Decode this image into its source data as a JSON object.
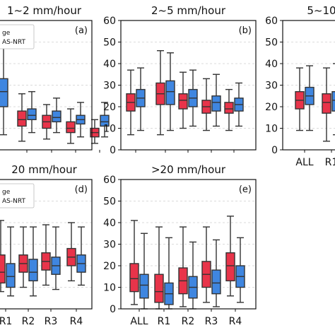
{
  "colors": {
    "gauge": "#e8344a",
    "imerg": "#3f86e0",
    "whisker": "#333333",
    "grid": "#d0d0d0"
  },
  "chart_data": [
    {
      "type": "box",
      "title": "1~2 mm/hour",
      "panel_label": "(a)",
      "categories": [
        "ALL",
        "R1",
        "R2",
        "R3",
        "R4"
      ],
      "tick_labels": [],
      "ylim": [
        0,
        60
      ],
      "ytick_labels": [],
      "grid": true,
      "legend": {
        "position": "top-left",
        "entries": [
          "ge",
          "AS-NRT"
        ]
      },
      "series": [
        {
          "name": "ge",
          "boxes": [
            {
              "min": 6,
              "q1": 14,
              "median": 19,
              "q3": 24,
              "max": 33
            },
            {
              "min": 4,
              "q1": 11,
              "median": 14,
              "q3": 18,
              "max": 26
            },
            {
              "min": 5,
              "q1": 10,
              "median": 13,
              "q3": 16,
              "max": 21
            },
            {
              "min": 3,
              "q1": 8,
              "median": 10,
              "q3": 13,
              "max": 19
            },
            {
              "min": 3,
              "q1": 6,
              "median": 8,
              "q3": 10,
              "max": 14
            }
          ]
        },
        {
          "name": "AS-NRT",
          "boxes": [
            {
              "min": 7,
              "q1": 20,
              "median": 27,
              "q3": 33,
              "max": 48
            },
            {
              "min": 8,
              "q1": 14,
              "median": 16,
              "q3": 19,
              "max": 27
            },
            {
              "min": 8,
              "q1": 13,
              "median": 15,
              "q3": 18,
              "max": 24
            },
            {
              "min": 6,
              "q1": 12,
              "median": 14,
              "q3": 16,
              "max": 22
            },
            {
              "min": 6,
              "q1": 11,
              "median": 13,
              "q3": 16,
              "max": 22
            }
          ]
        }
      ]
    },
    {
      "type": "box",
      "title": "2~5 mm/hour",
      "panel_label": "(b)",
      "categories": [
        "ALL",
        "R1",
        "R2",
        "R3",
        "R4"
      ],
      "tick_labels": [],
      "ylim": [
        0,
        60
      ],
      "ytick_labels": [
        "0",
        "10",
        "20",
        "30",
        "40",
        "50",
        "60"
      ],
      "grid": true,
      "series": [
        {
          "name": "ge",
          "boxes": [
            {
              "min": 7,
              "q1": 18,
              "median": 22,
              "q3": 26,
              "max": 37
            },
            {
              "min": 7,
              "q1": 21,
              "median": 26,
              "q3": 31,
              "max": 46
            },
            {
              "min": 10,
              "q1": 19,
              "median": 23,
              "q3": 26,
              "max": 36
            },
            {
              "min": 9,
              "q1": 17,
              "median": 20,
              "q3": 23,
              "max": 33
            },
            {
              "min": 9,
              "q1": 17,
              "median": 19,
              "q3": 22,
              "max": 28
            }
          ]
        },
        {
          "name": "AS-NRT",
          "boxes": [
            {
              "min": 9,
              "q1": 20,
              "median": 24,
              "q3": 28,
              "max": 38
            },
            {
              "min": 9,
              "q1": 21,
              "median": 27,
              "q3": 32,
              "max": 45
            },
            {
              "min": 11,
              "q1": 20,
              "median": 24,
              "q3": 28,
              "max": 37
            },
            {
              "min": 11,
              "q1": 18,
              "median": 22,
              "q3": 25,
              "max": 35
            },
            {
              "min": 11,
              "q1": 18,
              "median": 21,
              "q3": 24,
              "max": 31
            }
          ]
        }
      ]
    },
    {
      "type": "box",
      "title": "5~10",
      "panel_label": "",
      "categories": [
        "ALL",
        "R1"
      ],
      "tick_labels": [
        "ALL",
        "R1"
      ],
      "ylim": [
        0,
        60
      ],
      "ytick_labels": [
        "0",
        "10",
        "20",
        "30",
        "40",
        "50",
        "60"
      ],
      "grid": true,
      "series": [
        {
          "name": "ge",
          "boxes": [
            {
              "min": 9,
              "q1": 19,
              "median": 23,
              "q3": 27,
              "max": 38
            },
            {
              "min": 4,
              "q1": 17,
              "median": 22,
              "q3": 26,
              "max": 38
            }
          ]
        },
        {
          "name": "AS-NRT",
          "boxes": [
            {
              "min": 9,
              "q1": 21,
              "median": 25,
              "q3": 29,
              "max": 39
            },
            {
              "min": 7,
              "q1": 18,
              "median": 23,
              "q3": 27,
              "max": 40
            }
          ]
        }
      ]
    },
    {
      "type": "box",
      "title": "20 mm/hour",
      "panel_label": "(d)",
      "categories": [
        "R1",
        "R2",
        "R3",
        "R4"
      ],
      "tick_labels": [
        "R1",
        "R2",
        "R3",
        "R4"
      ],
      "ylim": [
        0,
        60
      ],
      "ytick_labels": [],
      "grid": true,
      "legend": {
        "position": "top-left",
        "entries": [
          "ge",
          "AS-NRT"
        ]
      },
      "series": [
        {
          "name": "ge",
          "boxes": [
            {
              "min": 8,
              "q1": 12,
              "median": 17,
              "q3": 25,
              "max": 41
            },
            {
              "min": 10,
              "q1": 17,
              "median": 21,
              "q3": 25,
              "max": 38
            },
            {
              "min": 11,
              "q1": 18,
              "median": 22,
              "q3": 26,
              "max": 39
            },
            {
              "min": 13,
              "q1": 20,
              "median": 24,
              "q3": 28,
              "max": 40
            }
          ]
        },
        {
          "name": "AS-NRT",
          "boxes": [
            {
              "min": 6,
              "q1": 10,
              "median": 15,
              "q3": 21,
              "max": 38
            },
            {
              "min": 6,
              "q1": 13,
              "median": 17,
              "q3": 23,
              "max": 38
            },
            {
              "min": 9,
              "q1": 16,
              "median": 20,
              "q3": 24,
              "max": 38
            },
            {
              "min": 11,
              "q1": 17,
              "median": 21,
              "q3": 25,
              "max": 38
            }
          ]
        }
      ]
    },
    {
      "type": "box",
      "title": ">20 mm/hour",
      "panel_label": "(e)",
      "categories": [
        "ALL",
        "R1",
        "R2",
        "R3",
        "R4"
      ],
      "tick_labels": [
        "ALL",
        "R1",
        "R2",
        "R3",
        "R4"
      ],
      "ylim": [
        0,
        60
      ],
      "ytick_labels": [
        "0",
        "10",
        "20",
        "30",
        "40",
        "50",
        "60"
      ],
      "grid": true,
      "series": [
        {
          "name": "ge",
          "boxes": [
            {
              "min": 2,
              "q1": 8,
              "median": 14,
              "q3": 21,
              "max": 41
            },
            {
              "min": 0,
              "q1": 3,
              "median": 8,
              "q3": 16,
              "max": 38
            },
            {
              "min": 1,
              "q1": 7,
              "median": 13,
              "q3": 19,
              "max": 38
            },
            {
              "min": 3,
              "q1": 10,
              "median": 16,
              "q3": 22,
              "max": 38
            },
            {
              "min": 6,
              "q1": 13,
              "median": 20,
              "q3": 26,
              "max": 43
            }
          ]
        },
        {
          "name": "AS-NRT",
          "boxes": [
            {
              "min": 0,
              "q1": 5,
              "median": 11,
              "q3": 16,
              "max": 35
            },
            {
              "min": 0,
              "q1": 2,
              "median": 7,
              "q3": 12,
              "max": 33
            },
            {
              "min": 0,
              "q1": 5,
              "median": 10,
              "q3": 15,
              "max": 31
            },
            {
              "min": 1,
              "q1": 7,
              "median": 12,
              "q3": 18,
              "max": 32
            },
            {
              "min": 3,
              "q1": 10,
              "median": 15,
              "q3": 20,
              "max": 33
            }
          ]
        }
      ]
    }
  ]
}
